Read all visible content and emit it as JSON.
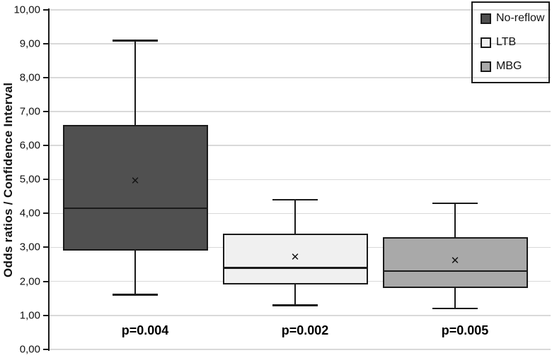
{
  "chart_data": {
    "type": "boxplot",
    "title": "",
    "ylabel": "Odds ratios / Confidence Interval",
    "xlabel": "",
    "ylim": [
      0,
      10
    ],
    "y_tick_step": 1,
    "y_tick_labels": [
      "0,00",
      "1,00",
      "2,00",
      "3,00",
      "4,00",
      "5,00",
      "6,00",
      "7,00",
      "8,00",
      "9,00",
      "10,00"
    ],
    "grid": true,
    "legend_position": "top-right",
    "mean_marker_glyph": "✕",
    "series": [
      {
        "name": "No-reflow",
        "fill_color": "#505050",
        "whisker_low": 1.6,
        "q1": 2.9,
        "median": 4.15,
        "mean": 4.95,
        "q3": 6.6,
        "whisker_high": 9.1,
        "p_value_label": "p=0.004"
      },
      {
        "name": "LTB",
        "fill_color": "#f0f0f0",
        "whisker_low": 1.3,
        "q1": 1.9,
        "median": 2.4,
        "mean": 2.7,
        "q3": 3.4,
        "whisker_high": 4.4,
        "p_value_label": "p=0.002"
      },
      {
        "name": "MBG",
        "fill_color": "#a9a9a9",
        "whisker_low": 1.2,
        "q1": 1.8,
        "median": 2.3,
        "mean": 2.6,
        "q3": 3.3,
        "whisker_high": 4.3,
        "p_value_label": "p=0.005"
      }
    ]
  },
  "colors": {
    "background": "#ffffff",
    "gridline": "#d9d9d9",
    "axis": "#1a1a1a",
    "box_border": "#1a1a1a",
    "text": "#111111",
    "legend_border": "#1a1a1a"
  }
}
